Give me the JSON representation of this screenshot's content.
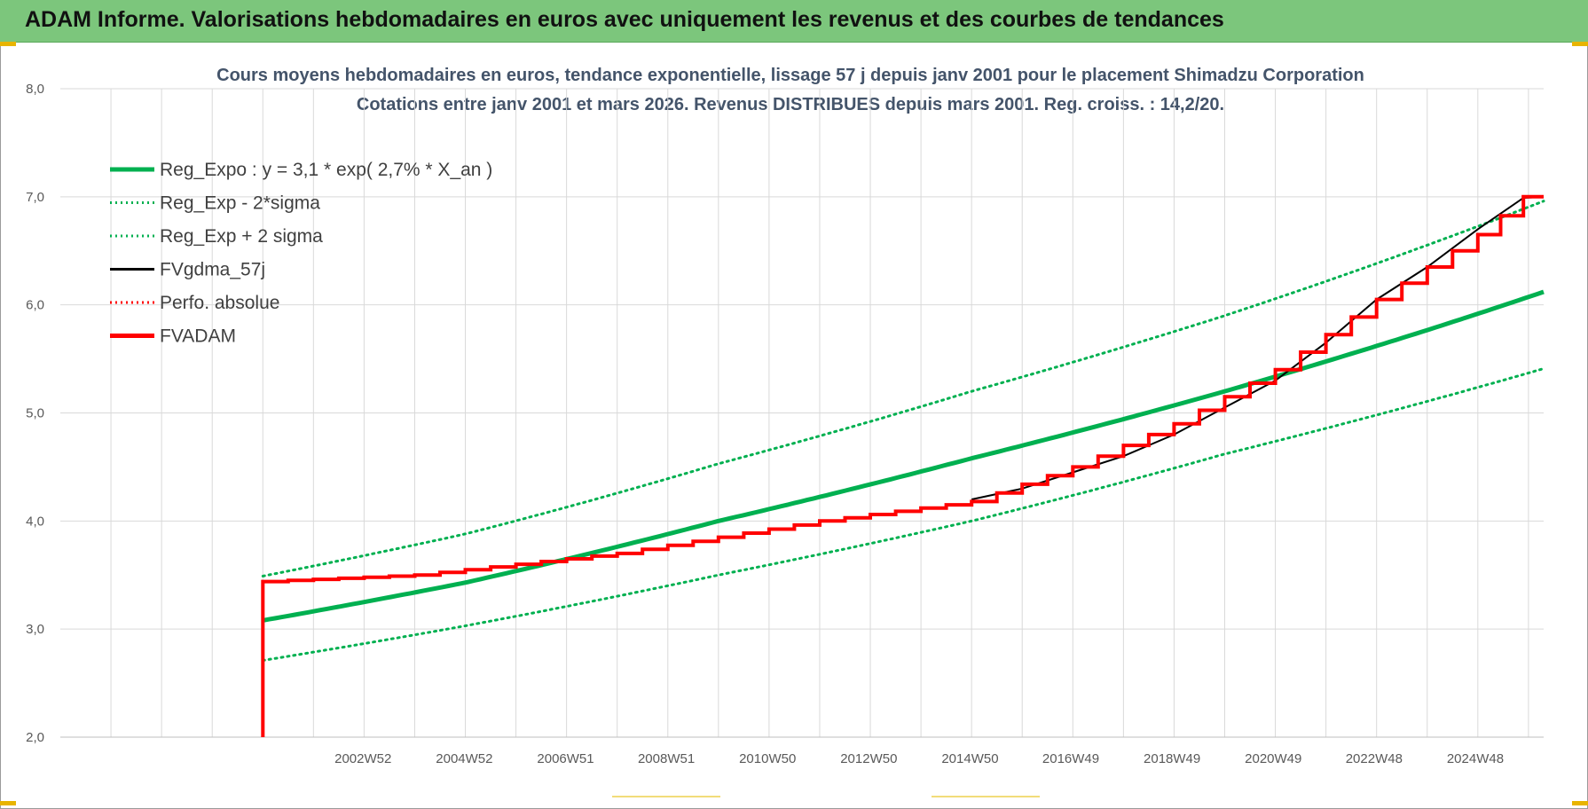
{
  "header": {
    "title": "ADAM Informe. Valorisations hebdomadaires en euros avec uniquement les revenus et des courbes de tendances"
  },
  "colors": {
    "banner": "#7cc67c",
    "reg_green": "#00b050",
    "adam_red": "#ff0000",
    "fv_black": "#000000",
    "grid": "#d9d9d9",
    "title": "#44546a",
    "accent_yellow": "#e8b400"
  },
  "chart_data": {
    "type": "line",
    "title": "Cours moyens hebdomadaires en euros, tendance exponentielle, lissage 57 j depuis janv 2001 pour le placement Shimadzu Corporation",
    "subtitle": "Cotations entre janv 2001 et mars 2026. Revenus DISTRIBUES depuis mars 2001. Reg. croiss. : 14,2/20.",
    "xlabel": "",
    "ylabel": "",
    "ylim": [
      2.0,
      8.0
    ],
    "y_ticks": [
      "2,0",
      "3,0",
      "4,0",
      "5,0",
      "6,0",
      "7,0",
      "8,0"
    ],
    "y_tick_values": [
      2,
      3,
      4,
      5,
      6,
      7,
      8
    ],
    "x_ticks": [
      "2002W52",
      "2004W52",
      "2006W51",
      "2008W51",
      "2010W50",
      "2012W50",
      "2014W50",
      "2016W49",
      "2018W49",
      "2020W49",
      "2022W48",
      "2024W48"
    ],
    "x_tick_years": [
      2002.98,
      2004.98,
      2006.98,
      2008.97,
      2010.97,
      2012.97,
      2014.97,
      2016.96,
      2018.96,
      2020.96,
      2022.95,
      2024.95
    ],
    "x_range": [
      1997,
      2026.3
    ],
    "grid": true,
    "legend_position": "top-left",
    "legend": [
      {
        "label": "Reg_Expo : y = 3,1 * exp( 2,7% *  X_an )",
        "color": "#00b050",
        "style": "solid-thick"
      },
      {
        "label": "Reg_Exp - 2*sigma",
        "color": "#00b050",
        "style": "dotted"
      },
      {
        "label": "Reg_Exp + 2 sigma",
        "color": "#00b050",
        "style": "dotted"
      },
      {
        "label": "FVgdma_57j",
        "color": "#000000",
        "style": "solid"
      },
      {
        "label": "Perfo. absolue",
        "color": "#ff0000",
        "style": "dotted"
      },
      {
        "label": "FVADAM",
        "color": "#ff0000",
        "style": "solid-thick"
      }
    ],
    "series": [
      {
        "name": "Reg_Expo : y = 3,1 * exp( 2,7% *  X_an )",
        "x": [
          2001.0,
          2005.0,
          2010.0,
          2015.0,
          2020.0,
          2026.3
        ],
        "values": [
          3.08,
          3.43,
          4.0,
          4.58,
          5.2,
          6.12
        ]
      },
      {
        "name": "Reg_Exp - 2*sigma",
        "x": [
          2001.0,
          2005.0,
          2010.0,
          2015.0,
          2020.0,
          2026.3
        ],
        "values": [
          2.71,
          3.03,
          3.5,
          4.0,
          4.62,
          5.41
        ]
      },
      {
        "name": "Reg_Exp + 2 sigma",
        "x": [
          2001.0,
          2005.0,
          2010.0,
          2015.0,
          2020.0,
          2026.3
        ],
        "values": [
          3.49,
          3.88,
          4.53,
          5.2,
          5.9,
          6.96
        ]
      },
      {
        "name": "FVgdma_57j",
        "x": [
          2015.0,
          2016.0,
          2017.0,
          2018.0,
          2019.0,
          2020.0,
          2021.0,
          2022.0,
          2023.0,
          2024.0,
          2025.0,
          2025.9,
          2026.3
        ],
        "values": [
          4.2,
          4.3,
          4.45,
          4.6,
          4.8,
          5.05,
          5.3,
          5.65,
          6.05,
          6.35,
          6.7,
          6.99,
          7.0
        ]
      },
      {
        "name": "FVADAM",
        "x": [
          2001.0,
          2001.0,
          2004.0,
          2008.0,
          2012.0,
          2015.0,
          2017.0,
          2019.0,
          2021.0,
          2023.0,
          2025.0,
          2025.9,
          2026.3
        ],
        "values": [
          2.0,
          3.44,
          3.5,
          3.7,
          4.0,
          4.18,
          4.5,
          4.9,
          5.4,
          6.05,
          6.65,
          7.0,
          7.0
        ]
      }
    ]
  }
}
